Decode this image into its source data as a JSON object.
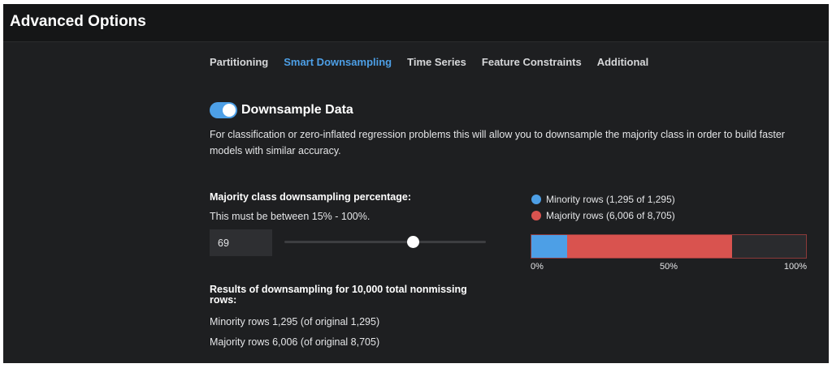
{
  "header": {
    "title": "Advanced Options"
  },
  "tabs": [
    {
      "label": "Partitioning",
      "active": false
    },
    {
      "label": "Smart Downsampling",
      "active": true
    },
    {
      "label": "Time Series",
      "active": false
    },
    {
      "label": "Feature Constraints",
      "active": false
    },
    {
      "label": "Additional",
      "active": false
    }
  ],
  "downsample": {
    "toggle_on": true,
    "title": "Downsample Data",
    "description": "For classification or zero-inflated regression problems this will allow you to downsample the majority class in order to build faster models with similar accuracy."
  },
  "percentage": {
    "label": "Majority class downsampling percentage:",
    "hint": "This must be between 15% - 100%.",
    "value": "69",
    "slider_min": 15,
    "slider_max": 100
  },
  "chart_data": {
    "type": "bar",
    "orientation": "horizontal-stacked",
    "legend": [
      {
        "label": "Minority rows (1,295 of 1,295)",
        "color": "#4d9fe6"
      },
      {
        "label": "Majority rows (6,006 of 8,705)",
        "color": "#d9534f"
      }
    ],
    "segments": [
      {
        "value": 1295,
        "color": "#4d9fe6"
      },
      {
        "value": 6006,
        "color": "#d9534f"
      }
    ],
    "total": 10000,
    "ticks": [
      "0%",
      "50%",
      "100%"
    ]
  },
  "results": {
    "title": "Results of downsampling for 10,000 total nonmissing rows:",
    "minority_line": "Minority rows 1,295 (of original 1,295)",
    "majority_line": "Majority rows 6,006 (of original 8,705)"
  }
}
